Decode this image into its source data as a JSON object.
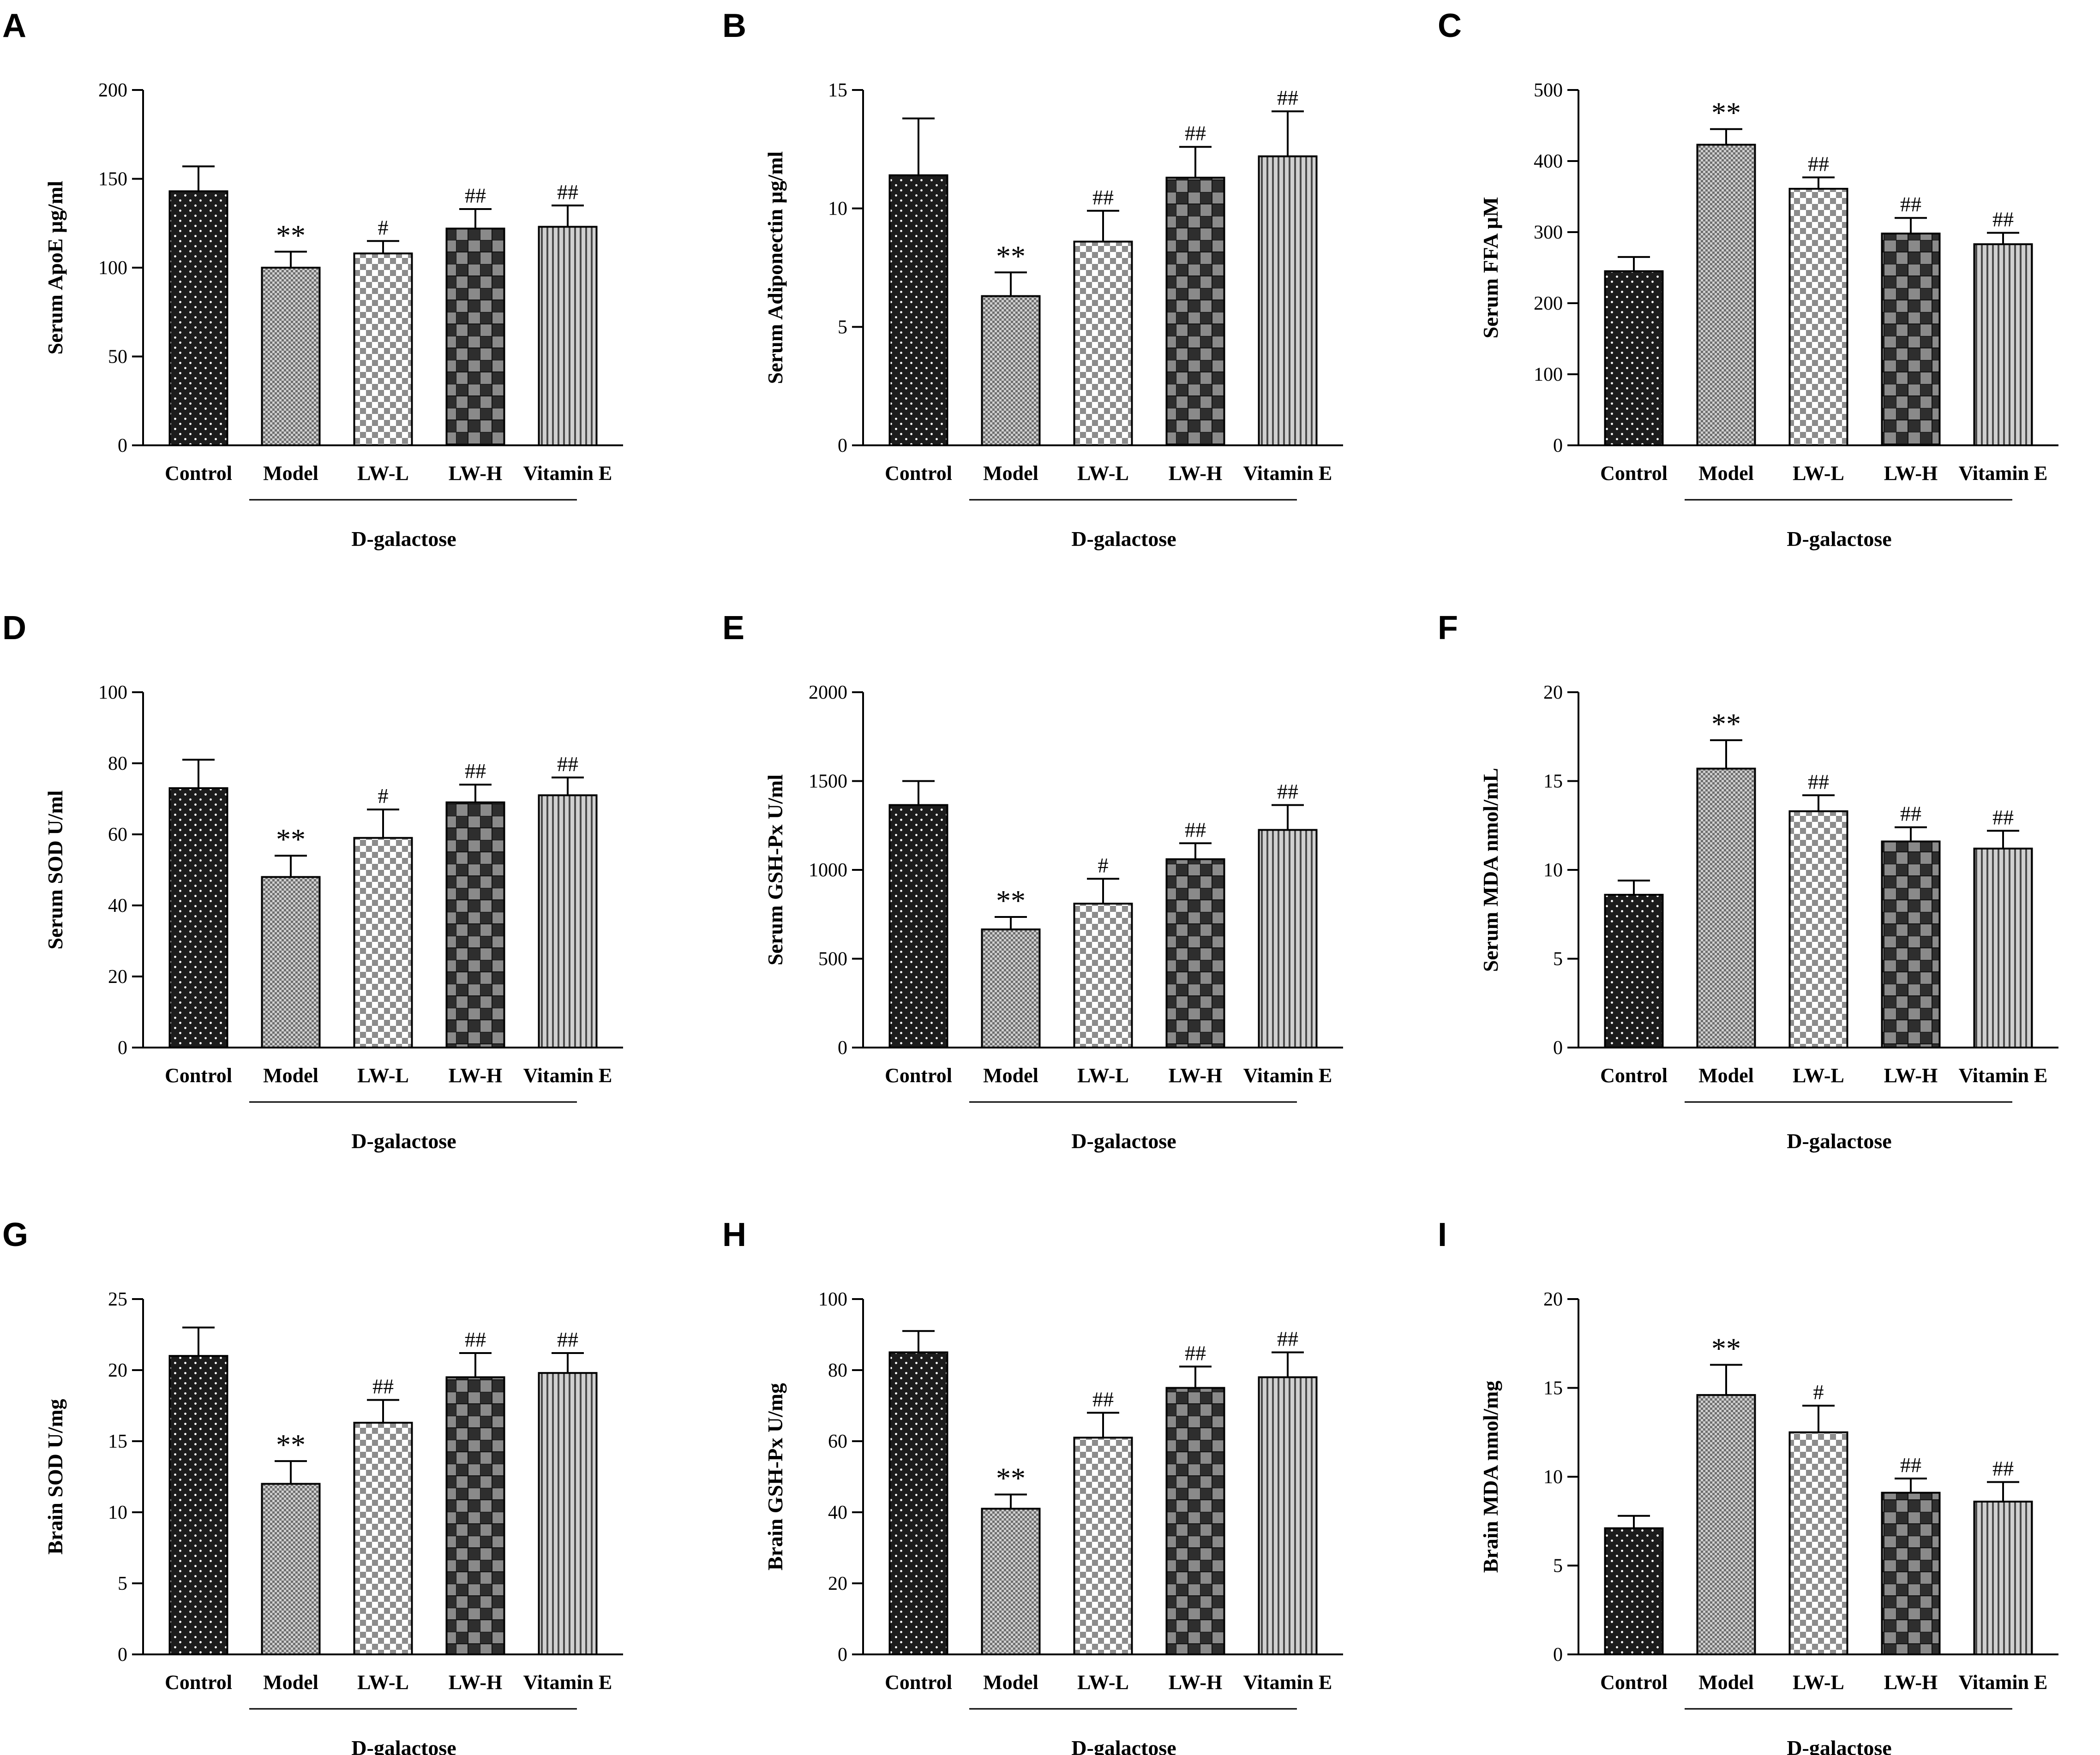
{
  "figure": {
    "categories": [
      "Control",
      "Model",
      "LW-L",
      "LW-H",
      "Vitamin E"
    ],
    "group_label": "D-galactose",
    "group_spans_categories": [
      "Model",
      "Vitamin E"
    ],
    "bar_fills": {
      "Control": {
        "pattern": "dots",
        "base": "#1c1c1c",
        "mark": "#ffffff"
      },
      "Model": {
        "pattern": "fine-grid",
        "base": "#6e6e6e",
        "mark": "#cfcfcf"
      },
      "LW-L": {
        "pattern": "checker",
        "base": "#ffffff",
        "mark": "#8c8c8c"
      },
      "LW-H": {
        "pattern": "large-checker",
        "base": "#2e2e2e",
        "mark": "#8a8a8a"
      },
      "Vitamin E": {
        "pattern": "vertical-stripes",
        "base": "#d0d0d0",
        "mark": "#4a4a4a"
      }
    }
  },
  "chart_data": [
    {
      "panel": "A",
      "type": "bar",
      "ylabel": "Serum ApoE µg/ml",
      "ylim": [
        0,
        200
      ],
      "yticks": [
        0,
        50,
        100,
        150,
        200
      ],
      "values": [
        143,
        100,
        108,
        122,
        123
      ],
      "errors": [
        14,
        9,
        7,
        11,
        12
      ],
      "annotations": [
        "",
        "**",
        "#",
        "##",
        "##"
      ]
    },
    {
      "panel": "B",
      "type": "bar",
      "ylabel": "Serum Adiponectin µg/ml",
      "ylim": [
        0,
        15
      ],
      "yticks": [
        0,
        5,
        10,
        15
      ],
      "values": [
        11.4,
        6.3,
        8.6,
        11.3,
        12.2
      ],
      "errors": [
        2.4,
        1.0,
        1.3,
        1.3,
        1.9
      ],
      "annotations": [
        "",
        "**",
        "##",
        "##",
        "##"
      ]
    },
    {
      "panel": "C",
      "type": "bar",
      "ylabel": "Serum FFA µM",
      "ylim": [
        0,
        500
      ],
      "yticks": [
        0,
        100,
        200,
        300,
        400,
        500
      ],
      "values": [
        245,
        423,
        361,
        298,
        283
      ],
      "errors": [
        20,
        22,
        16,
        22,
        16
      ],
      "annotations": [
        "",
        "**",
        "##",
        "##",
        "##"
      ]
    },
    {
      "panel": "D",
      "type": "bar",
      "ylabel": "Serum SOD U/ml",
      "ylim": [
        0,
        100
      ],
      "yticks": [
        0,
        20,
        40,
        60,
        80,
        100
      ],
      "values": [
        73,
        48,
        59,
        69,
        71
      ],
      "errors": [
        8,
        6,
        8,
        5,
        5
      ],
      "annotations": [
        "",
        "**",
        "#",
        "##",
        "##"
      ]
    },
    {
      "panel": "E",
      "type": "bar",
      "ylabel": "Serum GSH-Px U/ml",
      "ylim": [
        0,
        2000
      ],
      "yticks": [
        0,
        500,
        1000,
        1500,
        2000
      ],
      "values": [
        1365,
        665,
        810,
        1060,
        1225
      ],
      "errors": [
        135,
        70,
        140,
        90,
        140
      ],
      "annotations": [
        "",
        "**",
        "#",
        "##",
        "##"
      ]
    },
    {
      "panel": "F",
      "type": "bar",
      "ylabel": "Serum MDA nmol/mL",
      "ylim": [
        0,
        20
      ],
      "yticks": [
        0,
        5,
        10,
        15,
        20
      ],
      "values": [
        8.6,
        15.7,
        13.3,
        11.6,
        11.2
      ],
      "errors": [
        0.8,
        1.6,
        0.9,
        0.8,
        1.0
      ],
      "annotations": [
        "",
        "**",
        "##",
        "##",
        "##"
      ]
    },
    {
      "panel": "G",
      "type": "bar",
      "ylabel": "Brain SOD U/mg",
      "ylim": [
        0,
        25
      ],
      "yticks": [
        0,
        5,
        10,
        15,
        20,
        25
      ],
      "values": [
        21,
        12,
        16.3,
        19.5,
        19.8
      ],
      "errors": [
        2,
        1.6,
        1.6,
        1.7,
        1.4
      ],
      "annotations": [
        "",
        "**",
        "##",
        "##",
        "##"
      ]
    },
    {
      "panel": "H",
      "type": "bar",
      "ylabel": "Brain GSH-Px U/mg",
      "ylim": [
        0,
        100
      ],
      "yticks": [
        0,
        20,
        40,
        60,
        80,
        100
      ],
      "values": [
        85,
        41,
        61,
        75,
        78
      ],
      "errors": [
        6,
        4,
        7,
        6,
        7
      ],
      "annotations": [
        "",
        "**",
        "##",
        "##",
        "##"
      ]
    },
    {
      "panel": "I",
      "type": "bar",
      "ylabel": "Brain MDA nmol/mg",
      "ylim": [
        0,
        20
      ],
      "yticks": [
        0,
        5,
        10,
        15,
        20
      ],
      "values": [
        7.1,
        14.6,
        12.5,
        9.1,
        8.6
      ],
      "errors": [
        0.7,
        1.7,
        1.5,
        0.8,
        1.1
      ],
      "annotations": [
        "",
        "**",
        "#",
        "##",
        "##"
      ]
    }
  ]
}
